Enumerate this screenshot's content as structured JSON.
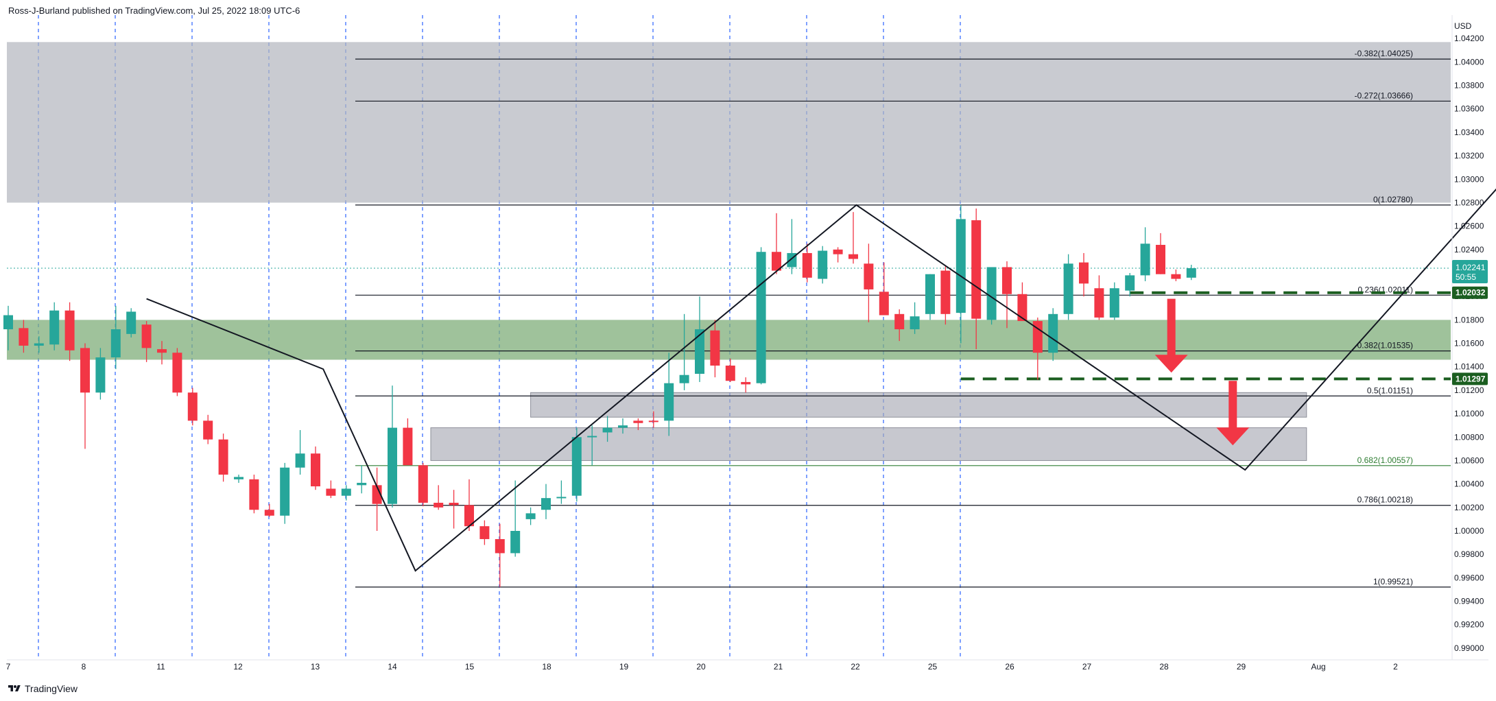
{
  "header": {
    "publisher": "Ross-J-Burland published on TradingView.com, Jul 25, 2022 18:09 UTC-6"
  },
  "footer": {
    "brand": "TradingView"
  },
  "colors": {
    "up": "#26a69a",
    "down": "#f23645",
    "grid_dash": "#2962ff",
    "resistance_zone": "#b2b5be",
    "support_zone": "#81a97c",
    "dash_green": "#1b5e20",
    "arrow_red": "#f23645",
    "price_badge": "#0f8f6f"
  },
  "chart_data": {
    "type": "candlestick",
    "currency": "USD",
    "ylim": [
      0.989,
      1.044
    ],
    "y_ticks": [
      "1.04200",
      "1.04000",
      "1.03800",
      "1.03600",
      "1.03400",
      "1.03200",
      "1.03000",
      "1.02800",
      "1.02600",
      "1.02400",
      "1.02200",
      "1.02000",
      "1.01800",
      "1.01600",
      "1.01400",
      "1.01200",
      "1.01000",
      "1.00800",
      "1.00600",
      "1.00400",
      "1.00200",
      "1.00000",
      "0.99800",
      "0.99600",
      "0.99400",
      "0.99200",
      "0.99000"
    ],
    "x_ticks": [
      "7",
      "8",
      "11",
      "12",
      "13",
      "14",
      "15",
      "18",
      "19",
      "20",
      "21",
      "22",
      "25",
      "26",
      "27",
      "28",
      "29",
      "Aug",
      "2"
    ],
    "session_lines": [
      0,
      2,
      4,
      6,
      8,
      10,
      12,
      14,
      16,
      18,
      20,
      22,
      24
    ],
    "candles": [
      {
        "i": 0,
        "o": 1.0172,
        "h": 1.0192,
        "l": 1.0154,
        "c": 1.0184
      },
      {
        "i": 1,
        "o": 1.0173,
        "h": 1.018,
        "l": 1.0152,
        "c": 1.0158
      },
      {
        "i": 2,
        "o": 1.0158,
        "h": 1.0166,
        "l": 1.0152,
        "c": 1.016
      },
      {
        "i": 3,
        "o": 1.0159,
        "h": 1.0195,
        "l": 1.0154,
        "c": 1.0188
      },
      {
        "i": 4,
        "o": 1.0188,
        "h": 1.0195,
        "l": 1.0145,
        "c": 1.0154
      },
      {
        "i": 5,
        "o": 1.0156,
        "h": 1.016,
        "l": 1.007,
        "c": 1.0118
      },
      {
        "i": 6,
        "o": 1.0118,
        "h": 1.0156,
        "l": 1.0112,
        "c": 1.0148
      },
      {
        "i": 7,
        "o": 1.0148,
        "h": 1.0192,
        "l": 1.0138,
        "c": 1.0172
      },
      {
        "i": 8,
        "o": 1.0168,
        "h": 1.019,
        "l": 1.0165,
        "c": 1.0187
      },
      {
        "i": 9,
        "o": 1.0176,
        "h": 1.0179,
        "l": 1.0144,
        "c": 1.0156
      },
      {
        "i": 10,
        "o": 1.0155,
        "h": 1.0162,
        "l": 1.0142,
        "c": 1.0152
      },
      {
        "i": 11,
        "o": 1.0152,
        "h": 1.0156,
        "l": 1.0115,
        "c": 1.0118
      },
      {
        "i": 12,
        "o": 1.0118,
        "h": 1.0122,
        "l": 1.009,
        "c": 1.0094
      },
      {
        "i": 13,
        "o": 1.0094,
        "h": 1.0099,
        "l": 1.0074,
        "c": 1.0078
      },
      {
        "i": 14,
        "o": 1.0078,
        "h": 1.0083,
        "l": 1.0042,
        "c": 1.0048
      },
      {
        "i": 15,
        "o": 1.0044,
        "h": 1.0048,
        "l": 1.0041,
        "c": 1.0046
      },
      {
        "i": 16,
        "o": 1.0044,
        "h": 1.0048,
        "l": 1.0015,
        "c": 1.0018
      },
      {
        "i": 17,
        "o": 1.0018,
        "h": 1.0023,
        "l": 1.0012,
        "c": 1.0013
      },
      {
        "i": 18,
        "o": 1.0013,
        "h": 1.0058,
        "l": 1.0006,
        "c": 1.0054
      },
      {
        "i": 19,
        "o": 1.0054,
        "h": 1.0086,
        "l": 1.0048,
        "c": 1.0066
      },
      {
        "i": 20,
        "o": 1.0066,
        "h": 1.0072,
        "l": 1.0035,
        "c": 1.0038
      },
      {
        "i": 21,
        "o": 1.0036,
        "h": 1.0043,
        "l": 1.0028,
        "c": 1.003
      },
      {
        "i": 22,
        "o": 1.003,
        "h": 1.0039,
        "l": 1.0026,
        "c": 1.0036
      },
      {
        "i": 23,
        "o": 1.0039,
        "h": 1.0056,
        "l": 1.0032,
        "c": 1.0041
      },
      {
        "i": 24,
        "o": 1.0039,
        "h": 1.0054,
        "l": 1.0,
        "c": 1.0023
      },
      {
        "i": 25,
        "o": 1.0023,
        "h": 1.0124,
        "l": 1.002,
        "c": 1.0088
      },
      {
        "i": 26,
        "o": 1.0088,
        "h": 1.0096,
        "l": 1.006,
        "c": 1.0056
      },
      {
        "i": 27,
        "o": 1.0056,
        "h": 1.0058,
        "l": 1.0021,
        "c": 1.0024
      },
      {
        "i": 28,
        "o": 1.0024,
        "h": 1.0039,
        "l": 1.0018,
        "c": 1.002
      },
      {
        "i": 29,
        "o": 1.0024,
        "h": 1.0035,
        "l": 1.0002,
        "c": 1.0022
      },
      {
        "i": 30,
        "o": 1.0022,
        "h": 1.0044,
        "l": 1.0,
        "c": 1.0004
      },
      {
        "i": 31,
        "o": 1.0004,
        "h": 1.0009,
        "l": 0.9988,
        "c": 0.9993
      },
      {
        "i": 32,
        "o": 0.9993,
        "h": 1.0006,
        "l": 0.9952,
        "c": 0.9981
      },
      {
        "i": 33,
        "o": 0.9981,
        "h": 1.0043,
        "l": 0.9978,
        "c": 1.0
      },
      {
        "i": 34,
        "o": 1.001,
        "h": 1.002,
        "l": 1.0005,
        "c": 1.0015
      },
      {
        "i": 35,
        "o": 1.0018,
        "h": 1.004,
        "l": 1.001,
        "c": 1.0028
      },
      {
        "i": 36,
        "o": 1.0028,
        "h": 1.0043,
        "l": 1.0023,
        "c": 1.0029
      },
      {
        "i": 37,
        "o": 1.003,
        "h": 1.0088,
        "l": 1.0025,
        "c": 1.008
      },
      {
        "i": 38,
        "o": 1.008,
        "h": 1.009,
        "l": 1.0056,
        "c": 1.0081
      },
      {
        "i": 39,
        "o": 1.0084,
        "h": 1.0098,
        "l": 1.0076,
        "c": 1.0088
      },
      {
        "i": 40,
        "o": 1.0088,
        "h": 1.0096,
        "l": 1.0083,
        "c": 1.009
      },
      {
        "i": 41,
        "o": 1.0094,
        "h": 1.0096,
        "l": 1.0086,
        "c": 1.0092
      },
      {
        "i": 42,
        "o": 1.0094,
        "h": 1.0102,
        "l": 1.0088,
        "c": 1.0093
      },
      {
        "i": 43,
        "o": 1.0094,
        "h": 1.0152,
        "l": 1.0081,
        "c": 1.0126
      },
      {
        "i": 44,
        "o": 1.0126,
        "h": 1.0185,
        "l": 1.012,
        "c": 1.0133
      },
      {
        "i": 45,
        "o": 1.0134,
        "h": 1.02,
        "l": 1.0127,
        "c": 1.0172
      },
      {
        "i": 46,
        "o": 1.0171,
        "h": 1.018,
        "l": 1.0131,
        "c": 1.0141
      },
      {
        "i": 47,
        "o": 1.0141,
        "h": 1.0147,
        "l": 1.0127,
        "c": 1.0128
      },
      {
        "i": 48,
        "o": 1.0127,
        "h": 1.0131,
        "l": 1.0118,
        "c": 1.0125
      },
      {
        "i": 49,
        "o": 1.0126,
        "h": 1.0242,
        "l": 1.0125,
        "c": 1.0238
      },
      {
        "i": 50,
        "o": 1.0238,
        "h": 1.0271,
        "l": 1.0219,
        "c": 1.0222
      },
      {
        "i": 51,
        "o": 1.0225,
        "h": 1.0266,
        "l": 1.0219,
        "c": 1.0237
      },
      {
        "i": 52,
        "o": 1.0237,
        "h": 1.0245,
        "l": 1.0212,
        "c": 1.0216
      },
      {
        "i": 53,
        "o": 1.0215,
        "h": 1.0243,
        "l": 1.0211,
        "c": 1.0239
      },
      {
        "i": 54,
        "o": 1.024,
        "h": 1.0242,
        "l": 1.0229,
        "c": 1.0236
      },
      {
        "i": 55,
        "o": 1.0236,
        "h": 1.0272,
        "l": 1.0228,
        "c": 1.0232
      },
      {
        "i": 56,
        "o": 1.0228,
        "h": 1.0245,
        "l": 1.0178,
        "c": 1.0206
      },
      {
        "i": 57,
        "o": 1.0204,
        "h": 1.0229,
        "l": 1.0189,
        "c": 1.0184
      },
      {
        "i": 58,
        "o": 1.0185,
        "h": 1.0189,
        "l": 1.0162,
        "c": 1.0172
      },
      {
        "i": 59,
        "o": 1.0172,
        "h": 1.0195,
        "l": 1.0168,
        "c": 1.0183
      },
      {
        "i": 60,
        "o": 1.0185,
        "h": 1.0219,
        "l": 1.018,
        "c": 1.0219
      },
      {
        "i": 61,
        "o": 1.0222,
        "h": 1.0226,
        "l": 1.0176,
        "c": 1.0185
      },
      {
        "i": 62,
        "o": 1.0186,
        "h": 1.0278,
        "l": 1.016,
        "c": 1.0266
      },
      {
        "i": 63,
        "o": 1.0265,
        "h": 1.0275,
        "l": 1.0155,
        "c": 1.0181
      },
      {
        "i": 64,
        "o": 1.018,
        "h": 1.0223,
        "l": 1.0176,
        "c": 1.0225
      },
      {
        "i": 65,
        "o": 1.0225,
        "h": 1.023,
        "l": 1.0173,
        "c": 1.0202
      },
      {
        "i": 66,
        "o": 1.0202,
        "h": 1.0212,
        "l": 1.018,
        "c": 1.0179
      },
      {
        "i": 67,
        "o": 1.0179,
        "h": 1.0182,
        "l": 1.0129,
        "c": 1.0152
      },
      {
        "i": 68,
        "o": 1.0152,
        "h": 1.019,
        "l": 1.0145,
        "c": 1.0185
      },
      {
        "i": 69,
        "o": 1.0185,
        "h": 1.0236,
        "l": 1.018,
        "c": 1.0228
      },
      {
        "i": 70,
        "o": 1.0229,
        "h": 1.0237,
        "l": 1.02,
        "c": 1.0211
      },
      {
        "i": 71,
        "o": 1.0207,
        "h": 1.0218,
        "l": 1.018,
        "c": 1.0182
      },
      {
        "i": 72,
        "o": 1.0182,
        "h": 1.0212,
        "l": 1.018,
        "c": 1.0207
      },
      {
        "i": 73,
        "o": 1.0205,
        "h": 1.022,
        "l": 1.02,
        "c": 1.0218
      },
      {
        "i": 74,
        "o": 1.0218,
        "h": 1.0259,
        "l": 1.0213,
        "c": 1.0245
      },
      {
        "i": 75,
        "o": 1.0244,
        "h": 1.0254,
        "l": 1.0219,
        "c": 1.0219
      },
      {
        "i": 76,
        "o": 1.0219,
        "h": 1.0223,
        "l": 1.0213,
        "c": 1.0215
      },
      {
        "i": 77,
        "o": 1.0216,
        "h": 1.0227,
        "l": 1.0214,
        "c": 1.02241
      }
    ],
    "fibonacci": [
      {
        "label": "-0.382(1.04025)",
        "value": 1.04025,
        "color": "#131722"
      },
      {
        "label": "-0.272(1.03666)",
        "value": 1.03666,
        "color": "#131722"
      },
      {
        "label": "0(1.02780)",
        "value": 1.0278,
        "color": "#131722"
      },
      {
        "label": "0.236(1.02011)",
        "value": 1.02011,
        "color": "#131722"
      },
      {
        "label": "0.382(1.01535)",
        "value": 1.01535,
        "color": "#131722"
      },
      {
        "label": "0.5(1.01151)",
        "value": 1.01151,
        "color": "#131722"
      },
      {
        "label": "0.682(1.00557)",
        "value": 1.00557,
        "color": "#2e7d32"
      },
      {
        "label": "0.786(1.00218)",
        "value": 1.00218,
        "color": "#131722"
      },
      {
        "label": "1(0.99521)",
        "value": 0.99521,
        "color": "#131722"
      }
    ],
    "zones": [
      {
        "kind": "resistance",
        "x0": -0.5,
        "x1": 108,
        "y0": 1.028,
        "y1": 1.0417
      },
      {
        "kind": "support",
        "x0": -0.5,
        "x1": 108,
        "y0": 1.0146,
        "y1": 1.018
      },
      {
        "kind": "gap",
        "x0": 34,
        "x1": 84.5,
        "y0": 1.0097,
        "y1": 1.0118
      },
      {
        "kind": "gap",
        "x0": 27.5,
        "x1": 84.5,
        "y0": 1.006,
        "y1": 1.0088
      }
    ],
    "dashed_levels": [
      {
        "value": 1.02032,
        "x0": 73,
        "x1": 108
      },
      {
        "value": 1.01297,
        "x0": 62,
        "x1": 108
      }
    ],
    "pattern_path": [
      [
        9,
        1.0198
      ],
      [
        20.5,
        1.0138
      ],
      [
        26.5,
        0.9966
      ],
      [
        55.2,
        1.0278
      ],
      [
        80.5,
        1.0052
      ],
      [
        102,
        1.0367
      ]
    ],
    "arrows": [
      {
        "x": 75.7,
        "from": 1.0198,
        "to": 1.0135
      },
      {
        "x": 79.7,
        "from": 1.0128,
        "to": 1.0073
      }
    ],
    "current_price": {
      "price": "1.02241",
      "countdown": "50:55",
      "value": 1.02241
    },
    "level_badges": [
      {
        "label": "1.02032",
        "value": 1.02032
      },
      {
        "label": "1.01297",
        "value": 1.01297
      }
    ]
  }
}
